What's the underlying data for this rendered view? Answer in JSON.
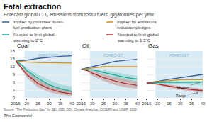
{
  "title": "Fatal extraction",
  "subtitle": "Forecast global CO₂ emissions from fossil fuels, gigatonnes per year",
  "annotations": [
    {
      "text": "Source: \"The Production Gap\" by SEI, IISD, ODI, Climate Analytics, CICERO and UNEP, 2019"
    },
    {
      "text": "The Economist"
    }
  ],
  "chart_data": [
    {
      "type": "line",
      "title": "Coal",
      "legend": "top",
      "grid": true,
      "x": [
        2015,
        2018,
        2020,
        2025,
        2030,
        2035,
        2040
      ],
      "xlim": [
        2015,
        2040
      ],
      "xticks": [
        2015,
        {
          "value": 2020,
          "label": "20"
        },
        {
          "value": 2025,
          "label": "25"
        },
        {
          "value": 2030,
          "label": "30"
        },
        {
          "value": 2035,
          "label": "35"
        },
        {
          "value": 2040,
          "label": "40"
        }
      ],
      "ylim": [
        0,
        18
      ],
      "yticks": [
        0,
        3,
        6,
        9,
        12,
        15,
        18
      ],
      "forecast": {
        "start": 2019,
        "label": "FORECAST",
        "color": "#d8eaf4"
      },
      "series": [
        {
          "type": "band",
          "color": "#88cfc8",
          "values": [
            14.2,
            13.0,
            11.5,
            9.0,
            6.8,
            5.2,
            4.2
          ],
          "lower": [
            14.2,
            11.8,
            9.5,
            6.0,
            3.2,
            2.0,
            1.2
          ]
        },
        {
          "type": "band",
          "color": "#c89090",
          "values": [
            14.2,
            12.2,
            10.2,
            7.0,
            5.0,
            3.5,
            2.8
          ],
          "lower": [
            14.2,
            10.2,
            7.8,
            4.0,
            2.2,
            1.2,
            0.7
          ]
        },
        {
          "name": "Implied by countries' fossil-\nfuel production plans",
          "color": "#3a5c9c",
          "values": [
            14.2,
            14.3,
            14.5,
            15.2,
            15.7,
            16.0,
            16.2
          ]
        },
        {
          "name": "Implied by emissions\nreduction pledges",
          "color": "#d4921a",
          "values": [
            14.2,
            13.9,
            13.8,
            13.6,
            13.5,
            13.4,
            13.4
          ]
        },
        {
          "name": "Needed to limit global\nwarming to 2°C",
          "color": "#1aaa98",
          "values": [
            14.2,
            12.5,
            10.5,
            7.5,
            5.0,
            3.5,
            2.5
          ]
        },
        {
          "name": "Needed to limit global\nwarming to 1.5°C",
          "color": "#b03030",
          "values": [
            14.2,
            11.2,
            9.0,
            5.5,
            3.5,
            2.2,
            1.5
          ]
        }
      ]
    },
    {
      "type": "line",
      "title": "Oil",
      "grid": true,
      "tick_labels": "x",
      "x": [
        2015,
        2018,
        2020,
        2025,
        2030,
        2035,
        2040
      ],
      "xlim": [
        2015,
        2040
      ],
      "xticks": [
        2015,
        {
          "value": 2020,
          "label": "20"
        },
        {
          "value": 2025,
          "label": "25"
        },
        {
          "value": 2030,
          "label": "30"
        },
        {
          "value": 2035,
          "label": "35"
        },
        {
          "value": 2040,
          "label": "40"
        }
      ],
      "ylim": [
        0,
        18
      ],
      "yticks": [
        0,
        3,
        6,
        9,
        12,
        15,
        18
      ],
      "forecast": {
        "start": 2019,
        "label": "FORECAST",
        "color": "#d8eaf4"
      },
      "series": [
        {
          "type": "band",
          "color": "#88cfc8",
          "values": [
            11.0,
            11.3,
            11.2,
            10.5,
            10.0,
            9.0,
            8.5
          ],
          "lower": [
            11.0,
            10.5,
            10.2,
            8.8,
            7.2,
            6.0,
            5.5
          ]
        },
        {
          "type": "band",
          "color": "#c89090",
          "values": [
            11.0,
            11.0,
            10.5,
            9.0,
            8.0,
            7.0,
            6.2
          ],
          "lower": [
            11.0,
            10.0,
            8.5,
            6.5,
            5.0,
            4.0,
            3.5
          ]
        },
        {
          "name": "Implied by countries' fossil-\nfuel production plans",
          "color": "#3a5c9c",
          "values": [
            11.0,
            11.5,
            12.0,
            13.0,
            14.0,
            14.5,
            14.8
          ]
        },
        {
          "name": "Implied by emissions\nreduction pledges",
          "color": "#d4921a",
          "values": [
            11.0,
            11.2,
            11.5,
            12.0,
            12.0,
            12.0,
            12.0
          ]
        },
        {
          "name": "Needed to limit global\nwarming to 2°C",
          "color": "#1aaa98",
          "values": [
            11.0,
            11.0,
            10.8,
            9.8,
            8.8,
            7.8,
            7.2
          ]
        },
        {
          "name": "Needed to limit global\nwarming to 1.5°C",
          "color": "#b03030",
          "values": [
            11.0,
            10.5,
            9.5,
            7.8,
            6.5,
            5.5,
            4.8
          ]
        }
      ]
    },
    {
      "type": "line",
      "title": "Gas",
      "grid": true,
      "tick_labels": "x",
      "x": [
        2015,
        2018,
        2020,
        2025,
        2030,
        2035,
        2040
      ],
      "xlim": [
        2015,
        2040
      ],
      "xticks": [
        2015,
        {
          "value": 2020,
          "label": "20"
        },
        {
          "value": 2025,
          "label": "25"
        },
        {
          "value": 2030,
          "label": "30"
        },
        {
          "value": 2035,
          "label": "35"
        },
        {
          "value": 2040,
          "label": "40"
        }
      ],
      "ylim": [
        0,
        18
      ],
      "yticks": [
        0,
        3,
        6,
        9,
        12,
        15,
        18
      ],
      "forecast": {
        "start": 2019,
        "label": "FORECAST",
        "color": "#d8eaf4"
      },
      "series": [
        {
          "type": "band",
          "color": "#88cfc8",
          "values": [
            5.8,
            6.1,
            6.2,
            6.4,
            6.5,
            6.5,
            6.5
          ],
          "lower": [
            5.8,
            5.7,
            5.6,
            5.4,
            5.3,
            5.0,
            4.9
          ]
        },
        {
          "type": "band",
          "color": "#c89090",
          "values": [
            5.8,
            5.9,
            5.7,
            5.0,
            4.5,
            4.0,
            3.5
          ],
          "lower": [
            5.8,
            5.3,
            4.9,
            4.0,
            3.1,
            2.5,
            2.0
          ]
        },
        {
          "name": "Implied by countries' fossil-\nfuel production plans",
          "color": "#3a5c9c",
          "values": [
            5.8,
            6.1,
            6.4,
            7.1,
            7.8,
            8.4,
            9.0
          ]
        },
        {
          "name": "Implied by emissions\nreduction pledges",
          "color": "#d4921a",
          "values": [
            5.8,
            6.0,
            6.2,
            6.6,
            7.0,
            7.0,
            7.0
          ]
        },
        {
          "name": "Needed to limit global\nwarming to 2°C",
          "color": "#1aaa98",
          "values": [
            5.8,
            5.9,
            5.9,
            6.0,
            6.0,
            6.1,
            6.1
          ]
        },
        {
          "name": "Needed to limit global\nwarming to 1.5°C",
          "color": "#b03030",
          "values": [
            5.8,
            5.6,
            5.3,
            4.5,
            3.8,
            3.2,
            2.8
          ]
        }
      ],
      "annotations": [
        {
          "text": "Median",
          "x": 2039,
          "y": 6.1
        },
        {
          "text": "Range",
          "x": 2038,
          "y": 2.0
        }
      ]
    }
  ]
}
